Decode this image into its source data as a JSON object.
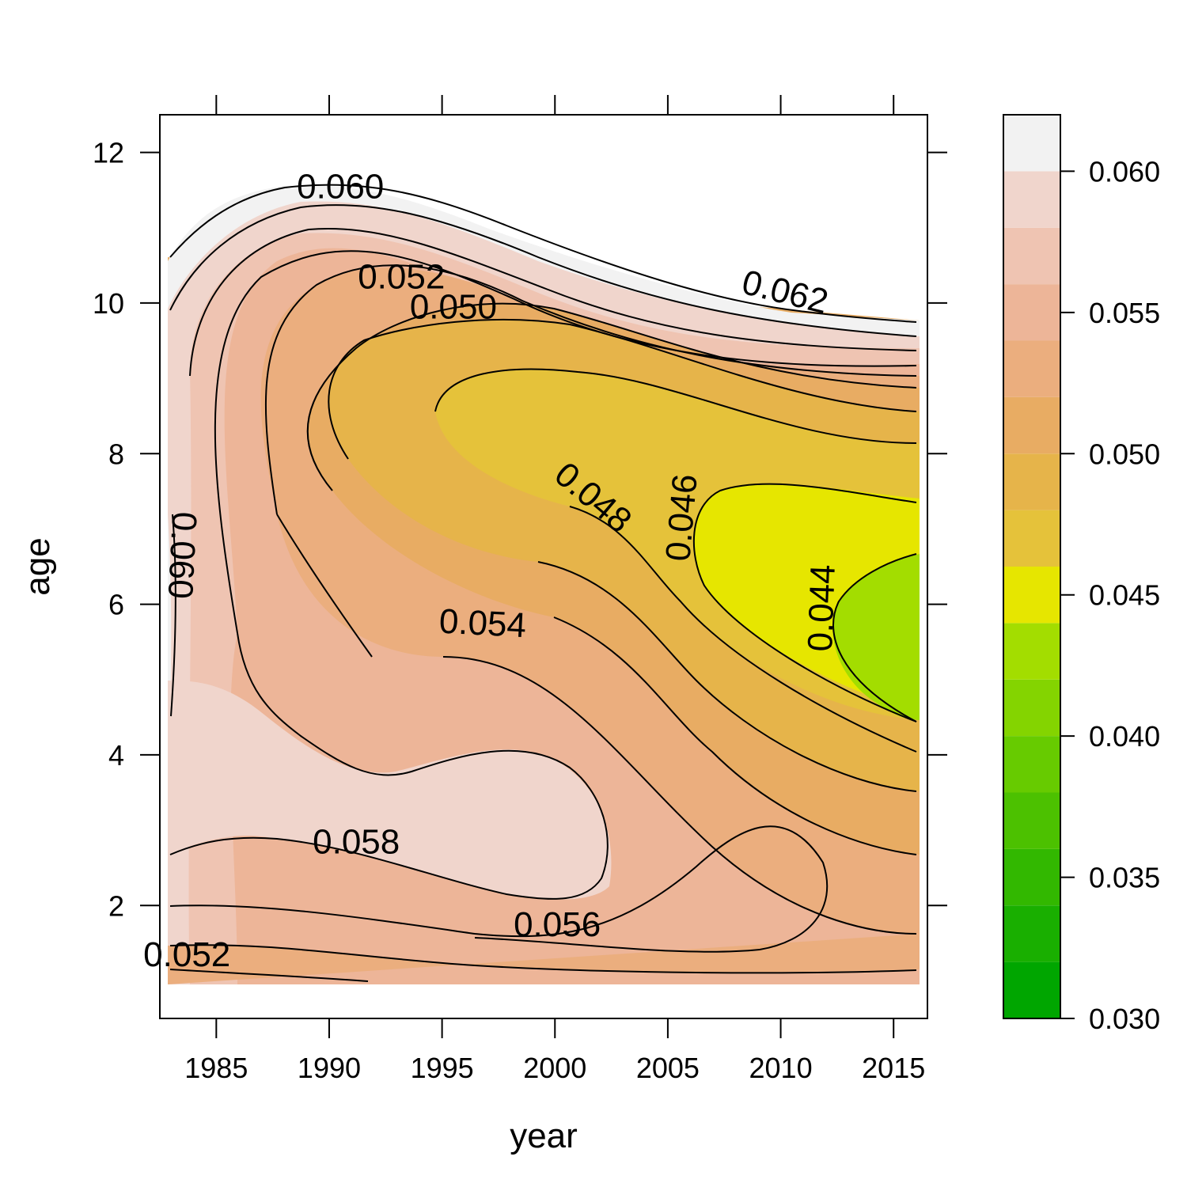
{
  "chart_data": {
    "type": "contourplot",
    "xlabel": "year",
    "ylabel": "age",
    "xlim": [
      1982.5,
      2016.5
    ],
    "ylim": [
      0.5,
      12.5
    ],
    "x_ticks": [
      1985,
      1990,
      1995,
      2000,
      2005,
      2010,
      2015
    ],
    "x_tick_labels": [
      "1985",
      "1990",
      "1995",
      "2000",
      "2005",
      "2010",
      "2015"
    ],
    "y_ticks": [
      2,
      4,
      6,
      8,
      10,
      12
    ],
    "y_tick_labels": [
      "2",
      "4",
      "6",
      "8",
      "10",
      "12"
    ],
    "colorkey": {
      "range": [
        0.03,
        0.062
      ],
      "ticks": [
        0.03,
        0.035,
        0.04,
        0.045,
        0.05,
        0.055,
        0.06
      ],
      "tick_labels": [
        "0.030",
        "0.035",
        "0.040",
        "0.045",
        "0.050",
        "0.055",
        "0.060"
      ],
      "bands": [
        {
          "from": 0.03,
          "to": 0.032,
          "color": "#00A600"
        },
        {
          "from": 0.032,
          "to": 0.034,
          "color": "#19AF00"
        },
        {
          "from": 0.034,
          "to": 0.036,
          "color": "#32B800"
        },
        {
          "from": 0.036,
          "to": 0.038,
          "color": "#4CC100"
        },
        {
          "from": 0.038,
          "to": 0.04,
          "color": "#67CB00"
        },
        {
          "from": 0.04,
          "to": 0.042,
          "color": "#84D400"
        },
        {
          "from": 0.042,
          "to": 0.044,
          "color": "#A3DD00"
        },
        {
          "from": 0.044,
          "to": 0.046,
          "color": "#E6E600"
        },
        {
          "from": 0.046,
          "to": 0.048,
          "color": "#E5C23A"
        },
        {
          "from": 0.048,
          "to": 0.05,
          "color": "#E6B44A"
        },
        {
          "from": 0.05,
          "to": 0.052,
          "color": "#E8AC63"
        },
        {
          "from": 0.052,
          "to": 0.054,
          "color": "#EBAE7E"
        },
        {
          "from": 0.054,
          "to": 0.056,
          "color": "#EDB598"
        },
        {
          "from": 0.056,
          "to": 0.058,
          "color": "#EFC4B2"
        },
        {
          "from": 0.058,
          "to": 0.06,
          "color": "#F0D5CC"
        },
        {
          "from": 0.06,
          "to": 0.062,
          "color": "#F2F2F2"
        }
      ]
    },
    "contour_labels": [
      {
        "text": "0.060",
        "x": 1990.5,
        "y": 11.55,
        "angle": 0
      },
      {
        "text": "0.052",
        "x": 1993.2,
        "y": 10.35,
        "angle": 0
      },
      {
        "text": "0.050",
        "x": 1995.5,
        "y": 9.95,
        "angle": 0
      },
      {
        "text": "0.062",
        "x": 2010.2,
        "y": 10.15,
        "angle": 14
      },
      {
        "text": "0.048",
        "x": 2001.7,
        "y": 7.42,
        "angle": 40
      },
      {
        "text": "0.046",
        "x": 2005.6,
        "y": 7.15,
        "angle": -85
      },
      {
        "text": "0.044",
        "x": 2011.8,
        "y": 5.95,
        "angle": -88
      },
      {
        "text": "0.060",
        "x": 1983.5,
        "y": 6.65,
        "angle": 93
      },
      {
        "text": "0.054",
        "x": 1996.8,
        "y": 5.75,
        "angle": 3
      },
      {
        "text": "0.058",
        "x": 1991.2,
        "y": 2.85,
        "angle": 0
      },
      {
        "text": "0.056",
        "x": 2000.1,
        "y": 1.75,
        "angle": 0
      },
      {
        "text": "0.052",
        "x": 1983.7,
        "y": 1.35,
        "angle": 0
      }
    ]
  }
}
